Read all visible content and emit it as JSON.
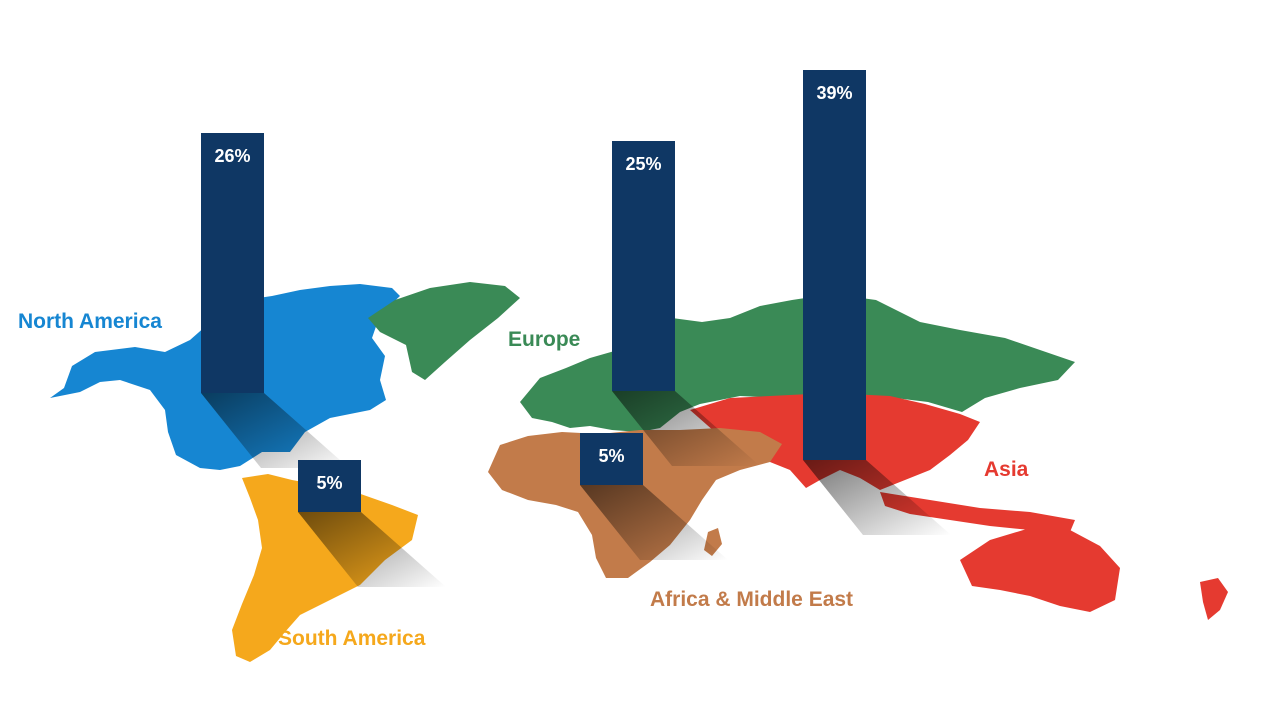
{
  "colors": {
    "bar": "#0f3764",
    "north_america": "#1686d2",
    "south_america": "#f5a81c",
    "europe": "#3a8a56",
    "africa_middle_east": "#c27b4a",
    "asia": "#e53a30",
    "background": "#ffffff"
  },
  "chart_data": {
    "type": "bar",
    "title": "",
    "categories": [
      "North America",
      "South America",
      "Europe",
      "Africa & Middle East",
      "Asia"
    ],
    "values": [
      26,
      5,
      25,
      5,
      39
    ],
    "value_labels": [
      "26%",
      "5%",
      "25%",
      "5%",
      "39%"
    ],
    "unit": "%",
    "background": "world map with regions colored by category",
    "grid": false,
    "legend": "none"
  }
}
